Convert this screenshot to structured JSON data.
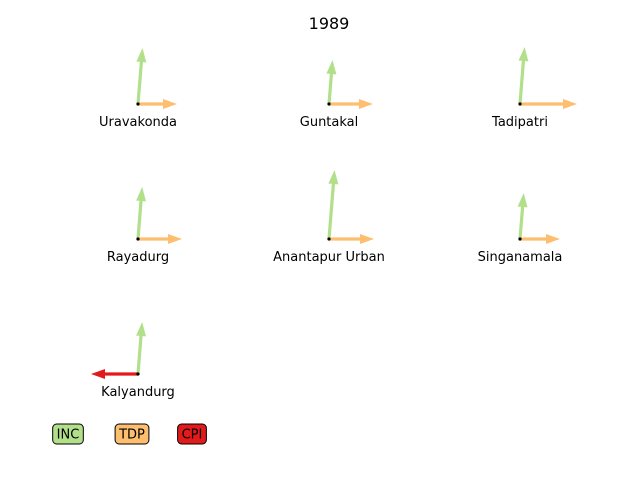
{
  "chart_data": {
    "type": "arrow-glyph",
    "title": "1989",
    "parties": [
      {
        "name": "INC",
        "color": "#b2df8a",
        "direction": "up"
      },
      {
        "name": "TDP",
        "color": "#fdbf6f",
        "direction": "right"
      },
      {
        "name": "CPI",
        "color": "#e31a1c",
        "direction": "left"
      }
    ],
    "constituencies": [
      {
        "name": "Uravakonda",
        "values": {
          "INC": 0.56,
          "TDP": 0.39,
          "CPI": 0
        }
      },
      {
        "name": "Guntakal",
        "values": {
          "INC": 0.44,
          "TDP": 0.44,
          "CPI": 0
        }
      },
      {
        "name": "Tadipatri",
        "values": {
          "INC": 0.57,
          "TDP": 0.57,
          "CPI": 0
        }
      },
      {
        "name": "Rayadurg",
        "values": {
          "INC": 0.52,
          "TDP": 0.44,
          "CPI": 0
        }
      },
      {
        "name": "Anantapur Urban",
        "values": {
          "INC": 0.69,
          "TDP": 0.45,
          "CPI": 0
        }
      },
      {
        "name": "Singanamala",
        "values": {
          "INC": 0.46,
          "TDP": 0.4,
          "CPI": 0
        }
      },
      {
        "name": "Kalyandurg",
        "values": {
          "INC": 0.52,
          "TDP": 0,
          "CPI": 0.47
        }
      }
    ]
  }
}
